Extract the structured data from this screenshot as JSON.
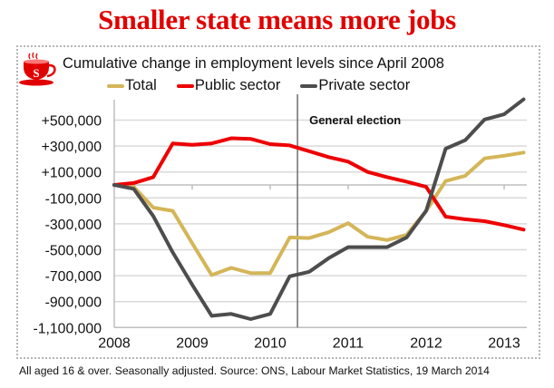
{
  "headline": "Smaller state means more jobs",
  "logo": {
    "icon": "teacup-icon",
    "letter": "S",
    "color": "#e10000"
  },
  "footnote": "All aged 16 & over. Seasonally adjusted. Source: ONS, Labour Market Statistics, 19 March 2014",
  "chart_data": {
    "type": "line",
    "title": "Cumulative change in employment levels since April 2008",
    "xlabel": "",
    "ylabel": "",
    "x_start": 2008.0,
    "x_step": 0.25,
    "xlim": [
      2008,
      2013.3
    ],
    "ylim": [
      -1100000,
      700000
    ],
    "yticks": [
      500000,
      300000,
      100000,
      -100000,
      -300000,
      -500000,
      -700000,
      -900000,
      -1100000
    ],
    "ytick_labels": [
      "+500,000",
      "+300,000",
      "+100,000",
      "-100,000",
      "-300,000",
      "-500,000",
      "-700,000",
      "-900,000",
      "-1,100,000"
    ],
    "xticks": [
      2008,
      2009,
      2010,
      2011,
      2012,
      2013
    ],
    "xtick_labels": [
      "2008",
      "2009",
      "2010",
      "2011",
      "2012",
      "2013"
    ],
    "grid": true,
    "legend_position": "top-center",
    "annotations": [
      {
        "x": 2010.35,
        "label": "General election"
      }
    ],
    "series": [
      {
        "name": "Total",
        "color": "#d4b558",
        "values": [
          0,
          -15000,
          -175000,
          -200000,
          -450000,
          -695000,
          -640000,
          -680000,
          -680000,
          -405000,
          -410000,
          -365000,
          -295000,
          -400000,
          -425000,
          -385000,
          -200000,
          30000,
          70000,
          205000,
          225000,
          250000
        ]
      },
      {
        "name": "Public sector",
        "color": "#ee0000",
        "values": [
          0,
          15000,
          60000,
          320000,
          310000,
          320000,
          360000,
          355000,
          315000,
          305000,
          260000,
          215000,
          180000,
          100000,
          60000,
          25000,
          -15000,
          -245000,
          -265000,
          -280000,
          -310000,
          -345000
        ]
      },
      {
        "name": "Private sector",
        "color": "#4d4d4d",
        "values": [
          0,
          -30000,
          -240000,
          -520000,
          -770000,
          -1010000,
          -995000,
          -1035000,
          -995000,
          -705000,
          -670000,
          -565000,
          -480000,
          -480000,
          -480000,
          -405000,
          -200000,
          280000,
          345000,
          505000,
          545000,
          660000
        ]
      }
    ]
  }
}
